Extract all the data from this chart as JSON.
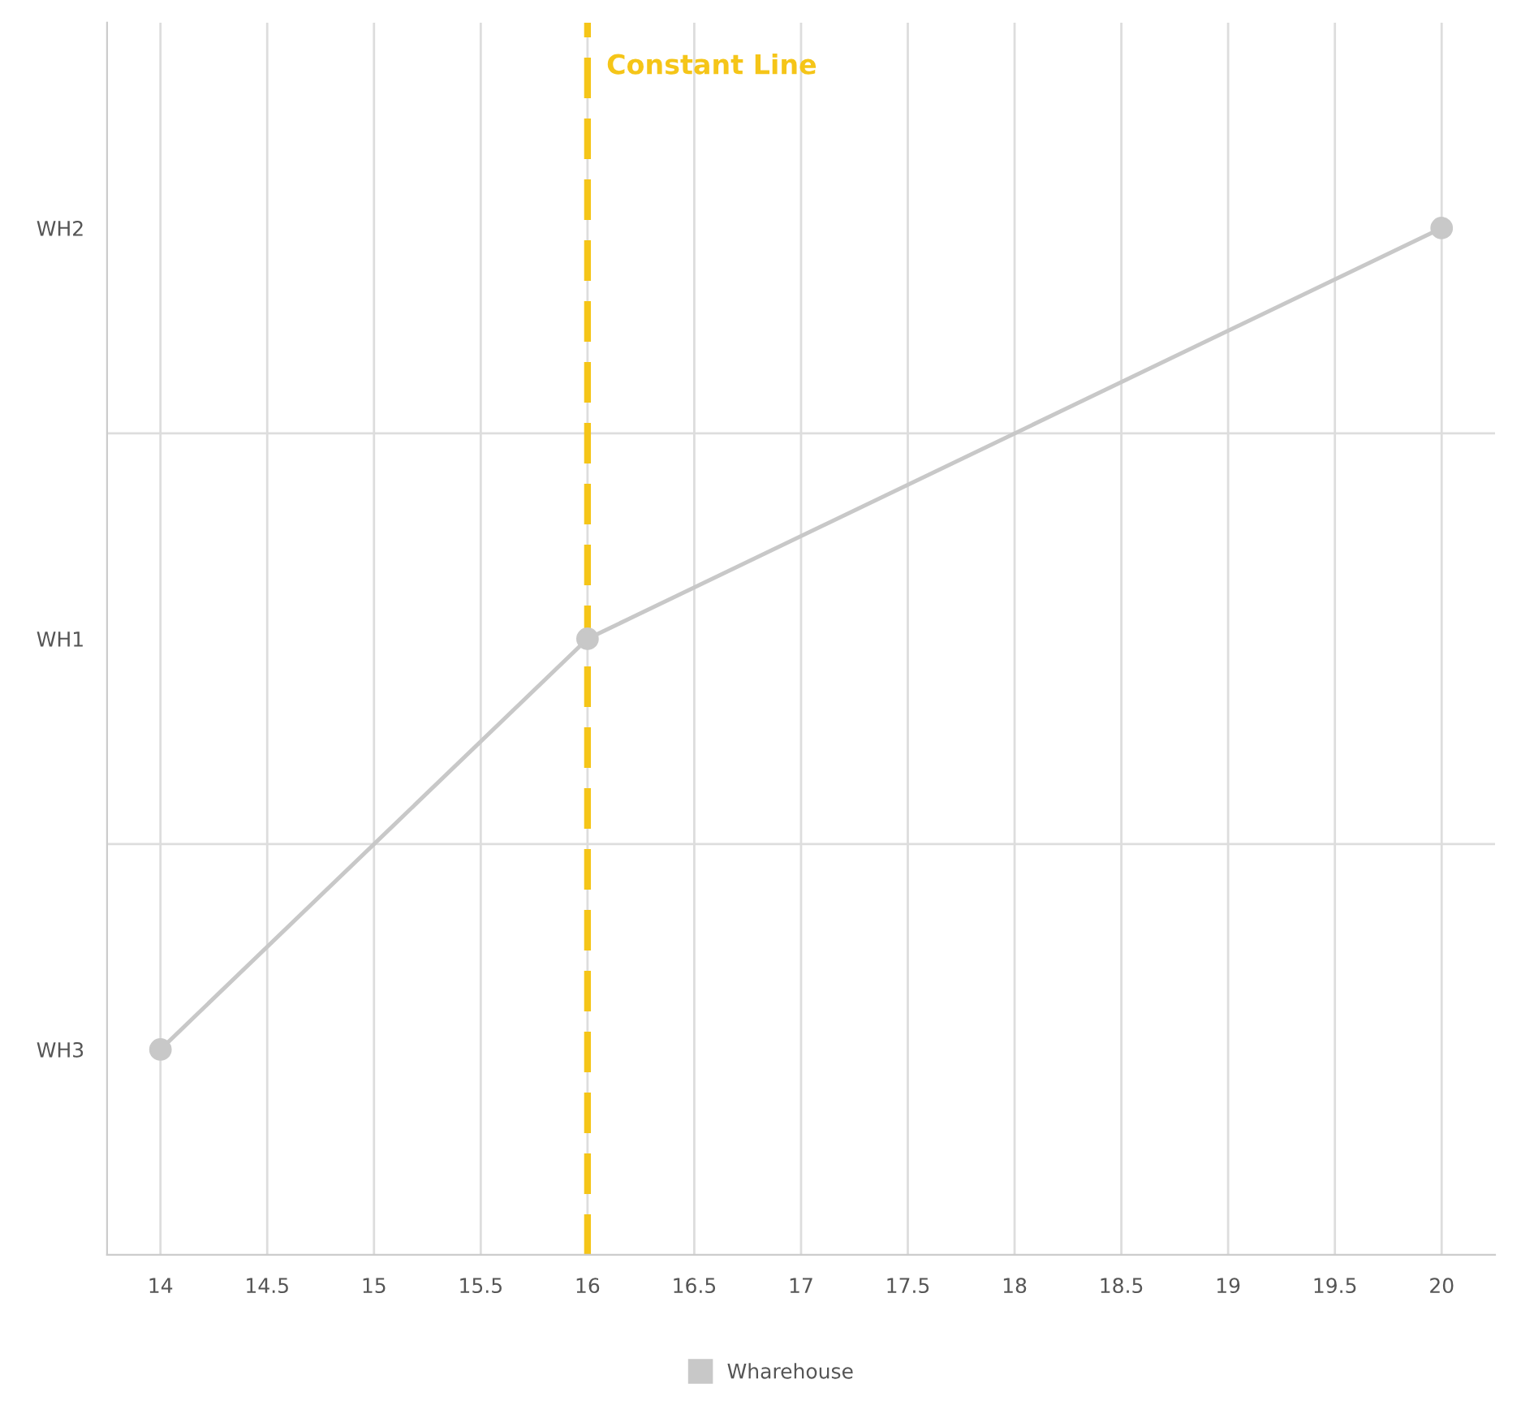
{
  "chart_data": {
    "type": "line",
    "orientation": "horizontal",
    "categories": [
      "WH2",
      "WH1",
      "WH3"
    ],
    "series": [
      {
        "name": "Wharehouse",
        "color": "#c8c8c8",
        "values": [
          20,
          16,
          14
        ]
      }
    ],
    "xlim": [
      13.75,
      20.25
    ],
    "xticks": [
      14,
      14.5,
      15,
      15.5,
      16,
      16.5,
      17,
      17.5,
      18,
      18.5,
      19,
      19.5,
      20
    ],
    "ref_lines": [
      {
        "axis": "x",
        "value": 16,
        "label": "Constant Line",
        "color": "#f5c518",
        "line_style": "dashed"
      }
    ],
    "grid": true,
    "legend": "bottom",
    "marker": "circle",
    "line_style": "solid"
  }
}
